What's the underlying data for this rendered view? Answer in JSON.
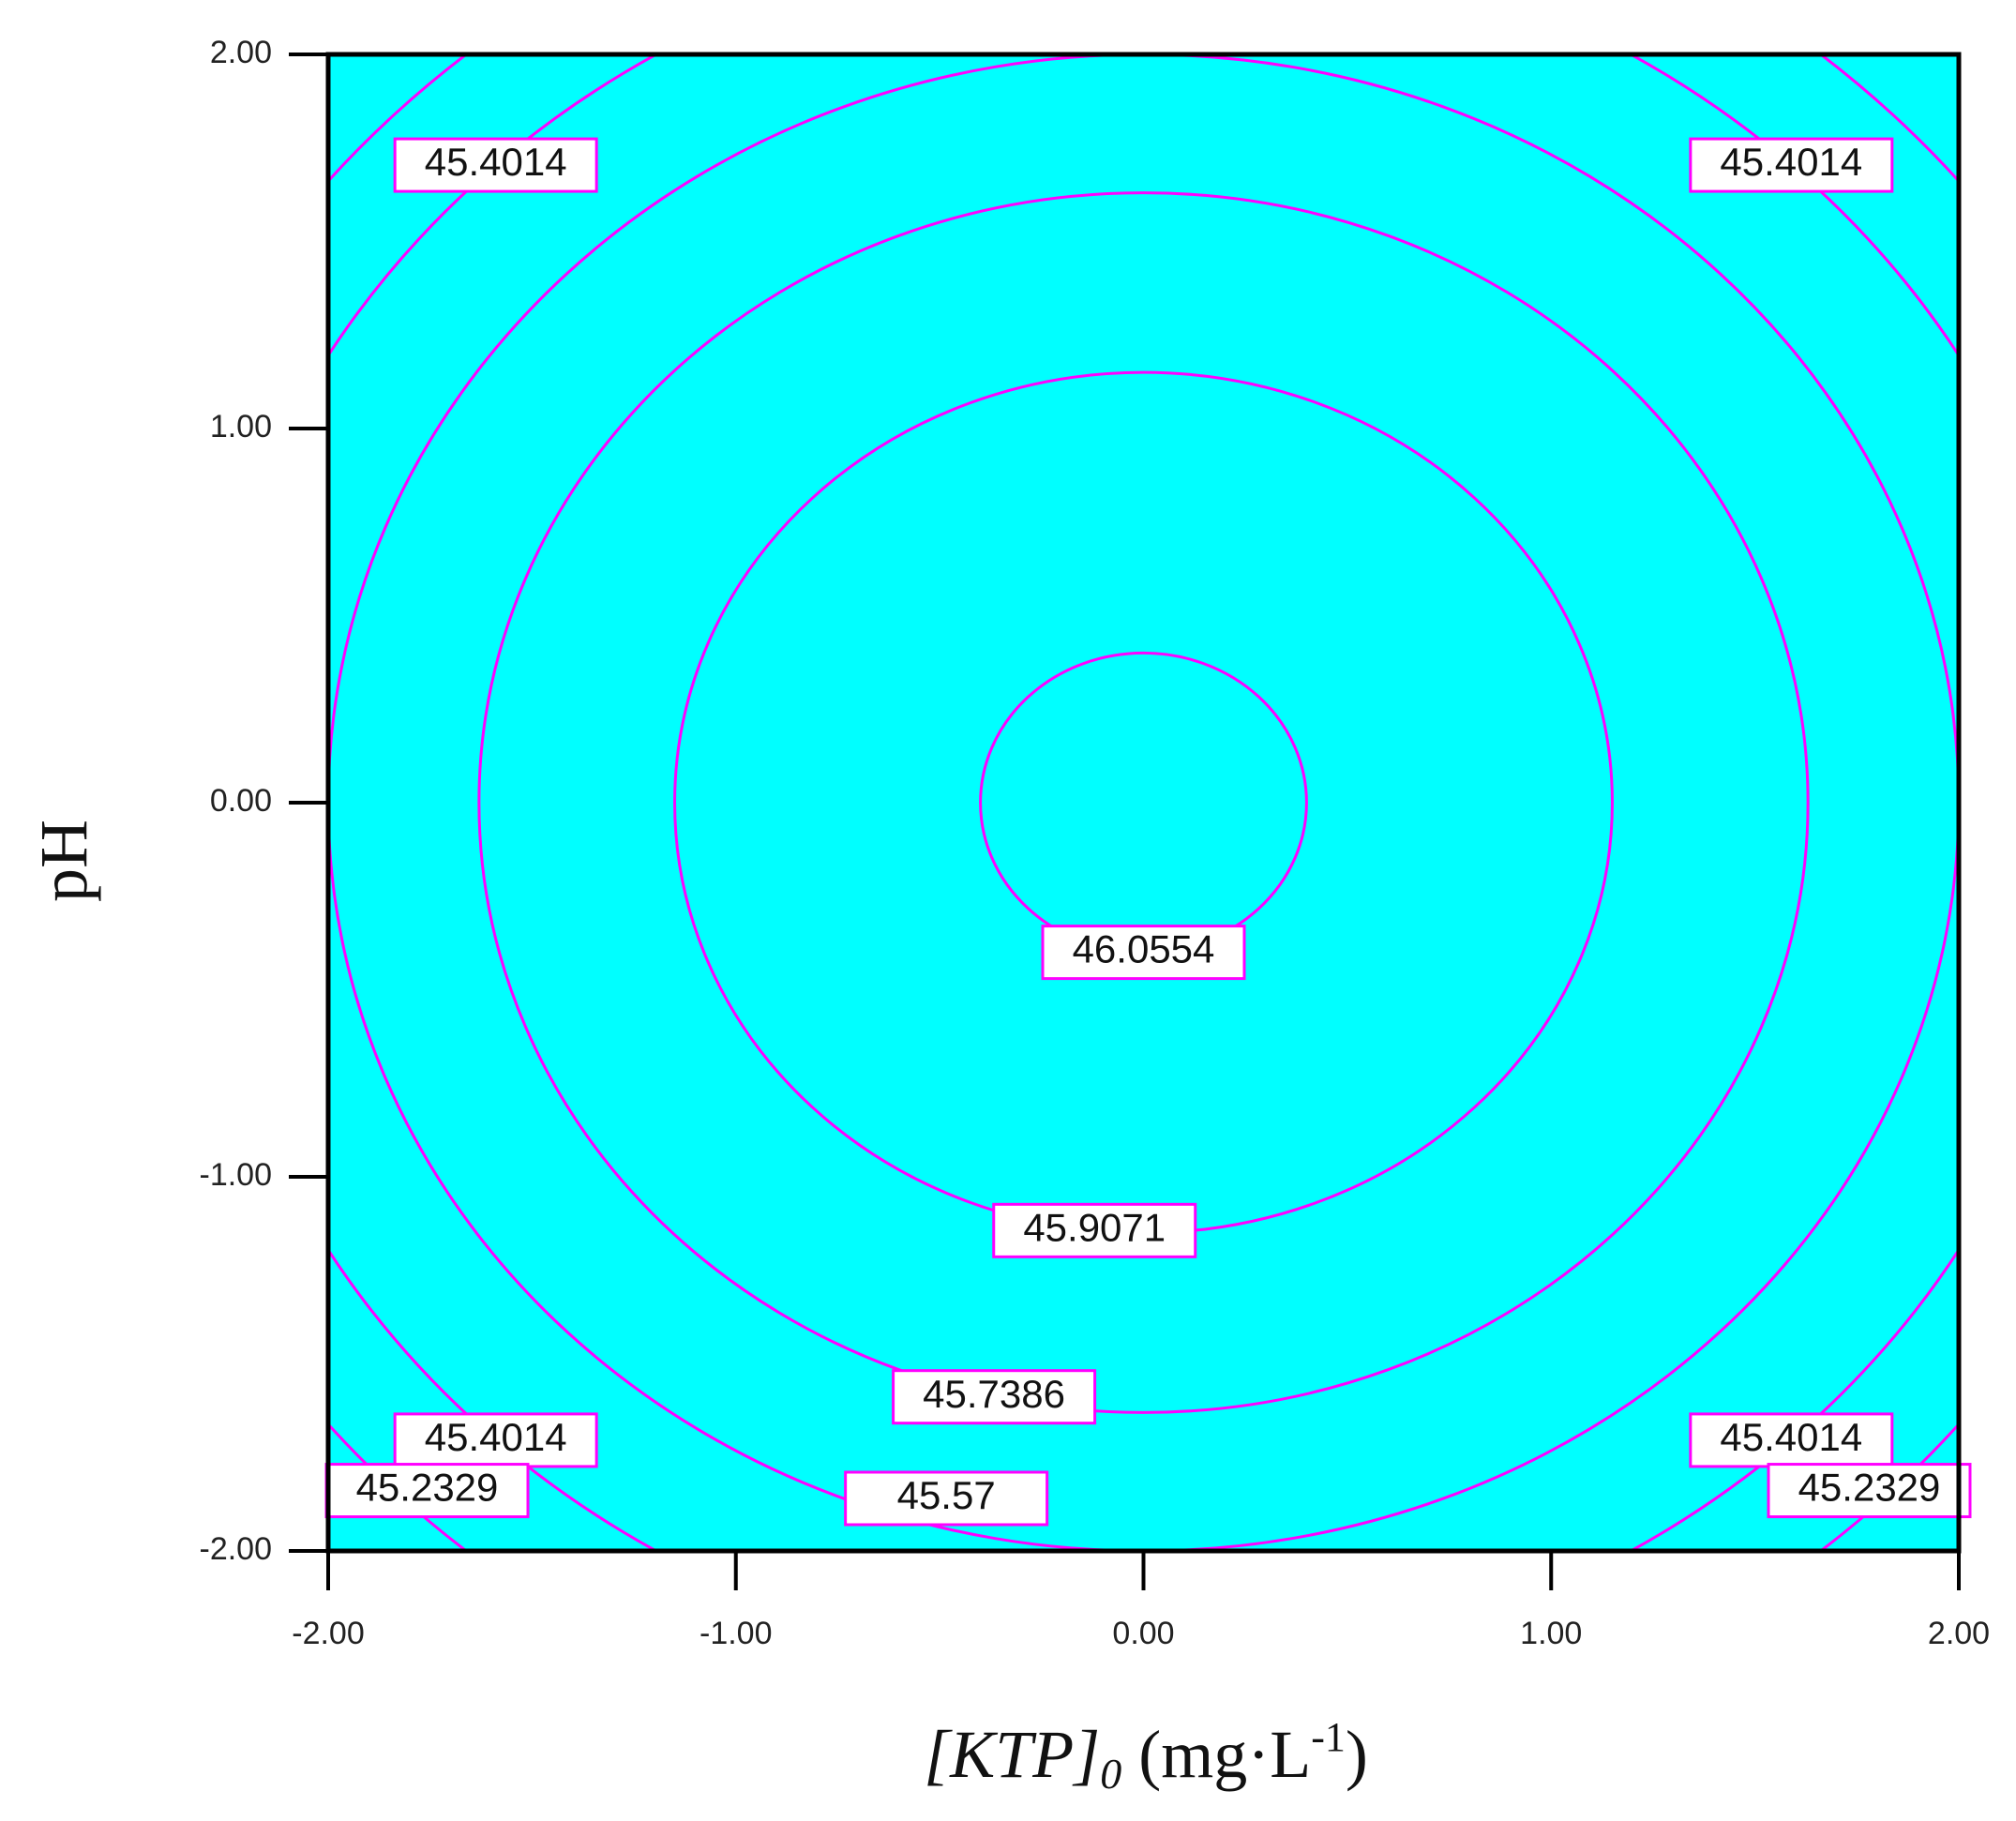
{
  "chart_data": {
    "type": "contour",
    "xlabel": [
      "[KTP]",
      "0",
      " (mg·L",
      "-1",
      ")"
    ],
    "ylabel": "pH",
    "xlim": [
      -2,
      2
    ],
    "ylim": [
      -2,
      2
    ],
    "xticks": [
      {
        "value": -2,
        "label": "-2.00"
      },
      {
        "value": -1,
        "label": "-1.00"
      },
      {
        "value": 0,
        "label": "0.00"
      },
      {
        "value": 1,
        "label": "1.00"
      },
      {
        "value": 2,
        "label": "2.00"
      }
    ],
    "yticks": [
      {
        "value": -2,
        "label": "-2.00"
      },
      {
        "value": -1,
        "label": "-1.00"
      },
      {
        "value": 0,
        "label": "0.00"
      },
      {
        "value": 1,
        "label": "1.00"
      },
      {
        "value": 2,
        "label": "2.00"
      }
    ],
    "center": [
      0,
      0
    ],
    "background": "#00ffff",
    "line_color": "#ff00ff",
    "contours": [
      {
        "level": "46.0554",
        "radius": 0.4
      },
      {
        "level": "45.9071",
        "radius": 1.15
      },
      {
        "level": "45.7386",
        "radius": 1.63
      },
      {
        "level": "45.57",
        "radius": 2.0
      },
      {
        "level": "45.4014",
        "radius": 2.33
      },
      {
        "level": "45.2329",
        "radius": 2.6
      }
    ]
  }
}
